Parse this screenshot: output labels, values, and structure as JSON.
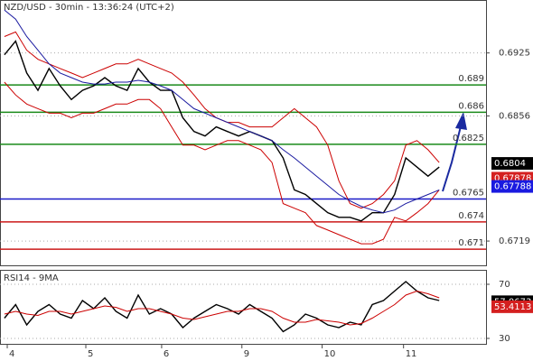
{
  "chart_data": [
    {
      "type": "line",
      "title": "NZD/USD - 30min - 13:36:24 (UTC+2)",
      "x": [
        0,
        1,
        2,
        3,
        4,
        5,
        6,
        7,
        8,
        9,
        10,
        11,
        12,
        13,
        14,
        15,
        16,
        17,
        18,
        19,
        20,
        21,
        22,
        23,
        24,
        25,
        26,
        27,
        28,
        29,
        30,
        31,
        32,
        33,
        34,
        35,
        36,
        37,
        38,
        39
      ],
      "xlim": [
        -0.4,
        43.2
      ],
      "ylim": [
        0.66914,
        0.6982
      ],
      "yticks": [
        0.6925,
        0.6856,
        0.6719
      ],
      "grid": true,
      "series": [
        {
          "color": "#000000",
          "values": [
            0.6923,
            0.6938,
            0.6903,
            0.6884,
            0.6908,
            0.6889,
            0.6874,
            0.6884,
            0.6889,
            0.6898,
            0.6889,
            0.6884,
            0.6908,
            0.6893,
            0.6884,
            0.6884,
            0.6854,
            0.6839,
            0.6834,
            0.6844,
            0.6839,
            0.6834,
            0.6839,
            0.6834,
            0.6829,
            0.681,
            0.6775,
            0.677,
            0.676,
            0.675,
            0.6745,
            0.6745,
            0.6741,
            0.675,
            0.675,
            0.677,
            0.681,
            0.68,
            0.679,
            0.68
          ]
        },
        {
          "color": "#cc0000",
          "values": [
            0.6943,
            0.6948,
            0.6928,
            0.6918,
            0.6913,
            0.6908,
            0.6903,
            0.6898,
            0.6903,
            0.6908,
            0.6913,
            0.6913,
            0.6918,
            0.6913,
            0.6908,
            0.6903,
            0.6893,
            0.6879,
            0.6864,
            0.6854,
            0.6849,
            0.6849,
            0.6844,
            0.6844,
            0.6844,
            0.6854,
            0.6864,
            0.6854,
            0.6844,
            0.6824,
            0.6785,
            0.676,
            0.6755,
            0.676,
            0.677,
            0.6785,
            0.6824,
            0.6829,
            0.6819,
            0.6805
          ]
        },
        {
          "color": "#cc0000",
          "values": [
            0.6893,
            0.6879,
            0.6869,
            0.6864,
            0.6859,
            0.6859,
            0.6854,
            0.6859,
            0.6859,
            0.6864,
            0.6869,
            0.6869,
            0.6874,
            0.6874,
            0.6864,
            0.6844,
            0.6824,
            0.6824,
            0.6819,
            0.6824,
            0.6829,
            0.6829,
            0.6824,
            0.6819,
            0.6805,
            0.676,
            0.6755,
            0.675,
            0.6736,
            0.6731,
            0.6726,
            0.6721,
            0.6716,
            0.6716,
            0.6721,
            0.6745,
            0.6741,
            0.675,
            0.676,
            0.6775
          ]
        },
        {
          "color": "#1a1aa0",
          "values": [
            0.6972,
            0.6962,
            0.6943,
            0.6928,
            0.6913,
            0.6903,
            0.6898,
            0.6893,
            0.6891,
            0.6891,
            0.6893,
            0.6893,
            0.6895,
            0.6893,
            0.6889,
            0.6884,
            0.6874,
            0.6864,
            0.6859,
            0.6854,
            0.6849,
            0.6844,
            0.6839,
            0.6834,
            0.6829,
            0.6819,
            0.681,
            0.68,
            0.679,
            0.678,
            0.677,
            0.6763,
            0.6757,
            0.6753,
            0.675,
            0.6753,
            0.676,
            0.6765,
            0.677,
            0.6775
          ]
        }
      ],
      "levels": [
        {
          "value": 0.689,
          "color": "#1a8a1a"
        },
        {
          "value": 0.686,
          "color": "#1a8a1a"
        },
        {
          "value": 0.6825,
          "color": "#1a8a1a"
        },
        {
          "value": 0.6765,
          "color": "#1a1ac8"
        },
        {
          "value": 0.674,
          "color": "#cc1a1a"
        },
        {
          "value": 0.671,
          "color": "#cc1a1a"
        }
      ],
      "price_labels": [
        {
          "value": 0.6804,
          "color": "#000000"
        },
        {
          "value": 0.67878,
          "color": "#d42020"
        },
        {
          "value": 0.67788,
          "color": "#1a1ae0"
        }
      ]
    },
    {
      "type": "line",
      "title": "RSI14 - 9MA",
      "x": [
        0,
        1,
        2,
        3,
        4,
        5,
        6,
        7,
        8,
        9,
        10,
        11,
        12,
        13,
        14,
        15,
        16,
        17,
        18,
        19,
        20,
        21,
        22,
        23,
        24,
        25,
        26,
        27,
        28,
        29,
        30,
        31,
        32,
        33,
        34,
        35,
        36,
        37,
        38,
        39
      ],
      "xlim": [
        -0.4,
        43.2
      ],
      "xticks": [
        {
          "value": 0.25,
          "label": "4"
        },
        {
          "value": 7.3,
          "label": "5"
        },
        {
          "value": 14.1,
          "label": "6"
        },
        {
          "value": 21.3,
          "label": "9"
        },
        {
          "value": 28.5,
          "label": "10"
        },
        {
          "value": 35.8,
          "label": "11"
        }
      ],
      "ylim": [
        25.3,
        80
      ],
      "yticks": [
        70,
        30
      ],
      "grid": true,
      "series": [
        {
          "color": "#000000",
          "values": [
            45,
            55,
            40,
            50,
            55,
            48,
            45,
            58,
            52,
            60,
            50,
            45,
            62,
            48,
            52,
            48,
            38,
            45,
            50,
            55,
            52,
            48,
            55,
            50,
            45,
            35,
            40,
            48,
            45,
            40,
            38,
            42,
            40,
            55,
            58,
            65,
            72,
            65,
            60,
            58
          ]
        },
        {
          "color": "#cc0000",
          "values": [
            48,
            50,
            48,
            47,
            50,
            50,
            48,
            50,
            52,
            54,
            53,
            50,
            52,
            52,
            50,
            48,
            45,
            44,
            46,
            48,
            50,
            50,
            52,
            52,
            50,
            45,
            42,
            42,
            44,
            43,
            42,
            40,
            41,
            45,
            50,
            55,
            62,
            65,
            63,
            60
          ]
        }
      ],
      "price_labels": [
        {
          "value": 57.0673,
          "color": "#000000"
        },
        {
          "value": 53.4113,
          "color": "#d42020"
        }
      ]
    }
  ]
}
